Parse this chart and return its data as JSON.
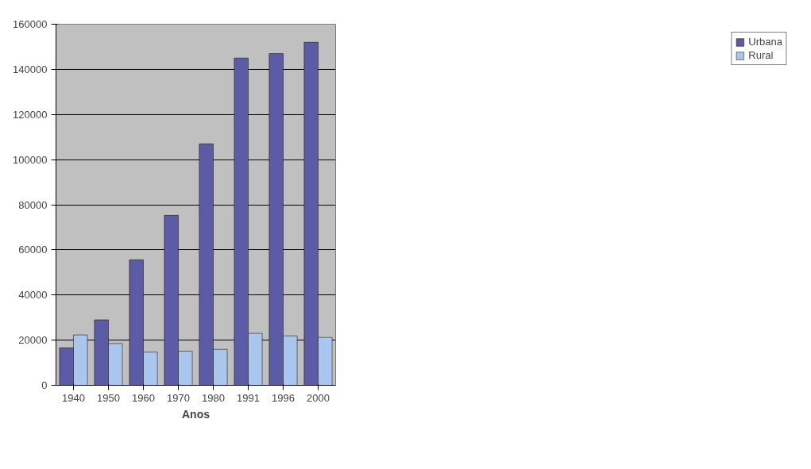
{
  "chart_data": {
    "type": "bar",
    "xlabel": "Anos",
    "categories": [
      "1940",
      "1950",
      "1960",
      "1970",
      "1980",
      "1991",
      "1996",
      "2000"
    ],
    "series": [
      {
        "name": "Urbana",
        "color": "#5b5ba8",
        "values": [
          16600,
          29000,
          55600,
          75300,
          107000,
          145000,
          147000,
          152000
        ]
      },
      {
        "name": "Rural",
        "color": "#a9c6ee",
        "values": [
          22300,
          18500,
          14700,
          15100,
          15900,
          23000,
          21900,
          21200
        ]
      }
    ],
    "ylim": [
      0,
      160000
    ],
    "yticks": [
      0,
      20000,
      40000,
      60000,
      80000,
      100000,
      120000,
      140000,
      160000
    ],
    "grid": "y",
    "legend": "right"
  }
}
